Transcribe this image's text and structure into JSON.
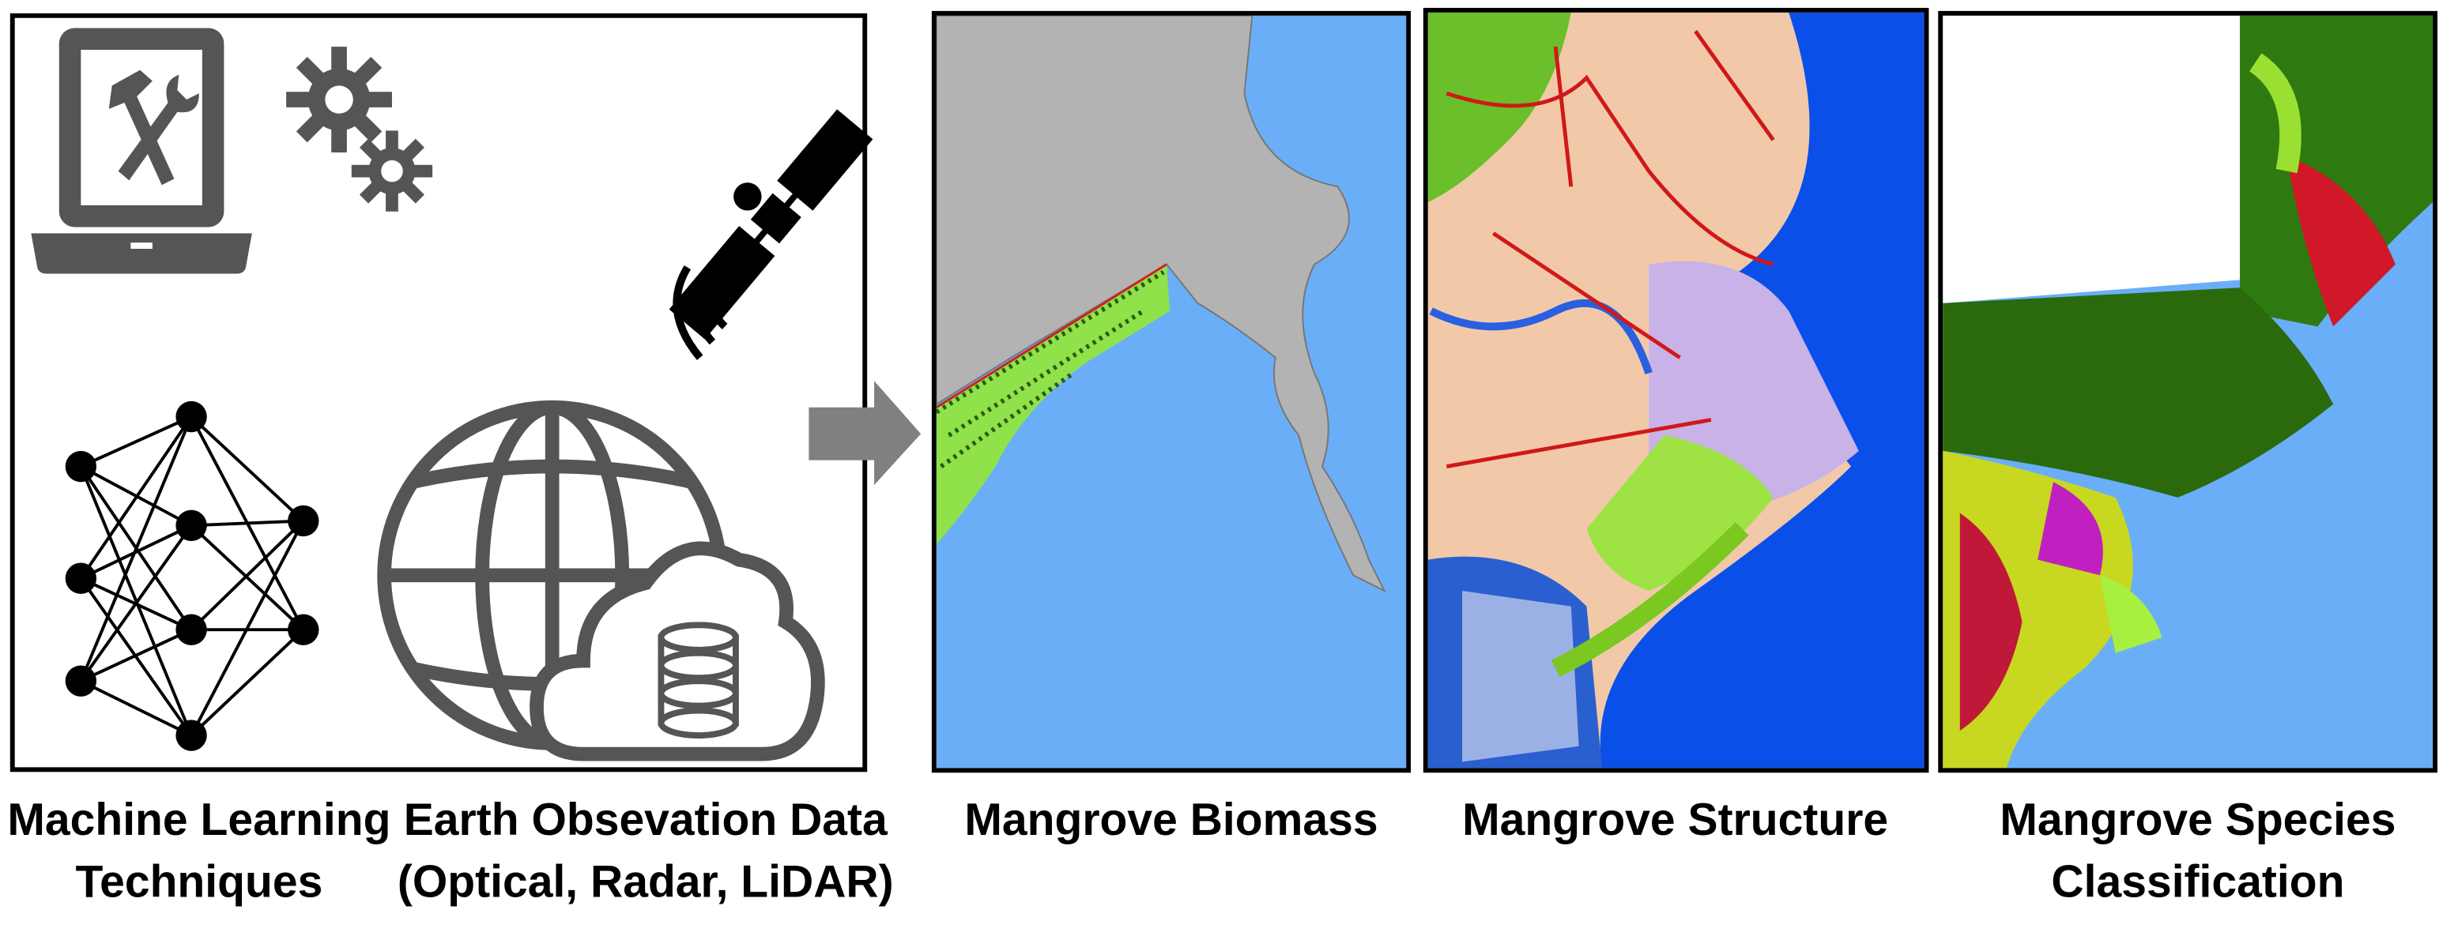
{
  "labels": [
    {
      "lines": [
        "Machine Learning",
        "Techniques"
      ]
    },
    {
      "lines": [
        "Earth Obsevation Data",
        "(Optical, Radar, LiDAR)"
      ]
    },
    {
      "lines": [
        "Mangrove Biomass"
      ]
    },
    {
      "lines": [
        "Mangrove Structure"
      ]
    },
    {
      "lines": [
        "Mangrove Species",
        "Classification"
      ]
    }
  ]
}
